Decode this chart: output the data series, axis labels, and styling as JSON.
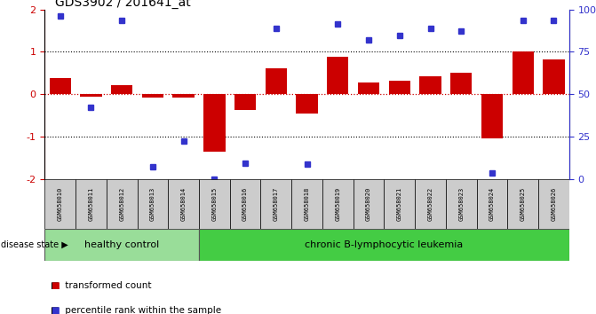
{
  "title": "GDS3902 / 201641_at",
  "samples": [
    "GSM658010",
    "GSM658011",
    "GSM658012",
    "GSM658013",
    "GSM658014",
    "GSM658015",
    "GSM658016",
    "GSM658017",
    "GSM658018",
    "GSM658019",
    "GSM658020",
    "GSM658021",
    "GSM658022",
    "GSM658023",
    "GSM658024",
    "GSM658025",
    "GSM658026"
  ],
  "red_bars": [
    0.38,
    -0.05,
    0.22,
    -0.08,
    -0.08,
    -1.35,
    -0.38,
    0.62,
    -0.45,
    0.88,
    0.28,
    0.32,
    0.42,
    0.5,
    -1.05,
    1.0,
    0.82
  ],
  "blue_dots": [
    1.85,
    -0.32,
    1.75,
    -1.72,
    -1.1,
    -2.0,
    -1.62,
    1.55,
    -1.65,
    1.65,
    1.28,
    1.38,
    1.55,
    1.5,
    -1.85,
    1.75,
    1.75
  ],
  "ylim": [
    -2.0,
    2.0
  ],
  "healthy_control_count": 5,
  "bar_color": "#cc0000",
  "dot_color": "#3333cc",
  "healthy_color": "#99dd99",
  "leukemia_color": "#44cc44",
  "sample_bg_color": "#cccccc",
  "zero_line_color": "#cc0000",
  "legend_red_label": "transformed count",
  "legend_blue_label": "percentile rank within the sample",
  "group_label": "disease state",
  "healthy_label": "healthy control",
  "leukemia_label": "chronic B-lymphocytic leukemia",
  "right_ytick_labels": [
    "0",
    "25",
    "50",
    "75",
    "100%"
  ]
}
